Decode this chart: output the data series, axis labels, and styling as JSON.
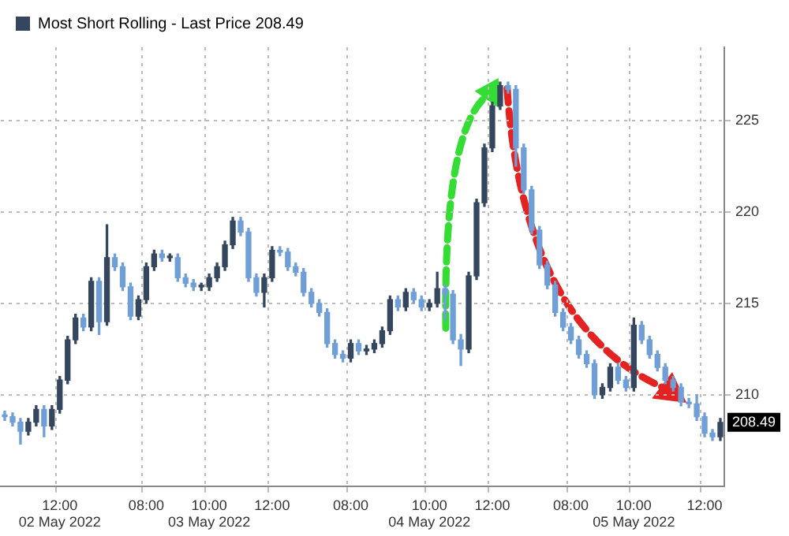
{
  "chart_data": {
    "type": "candlestick",
    "legend": "top left",
    "grid": true,
    "categories": [
      null,
      null,
      null,
      null,
      null,
      null,
      null,
      "12:00\n02 May 2022",
      null,
      null,
      null,
      null,
      null,
      null,
      null,
      null,
      null,
      null,
      "08:00",
      null,
      null,
      null,
      null,
      null,
      null,
      null,
      "10:00\n03 May 2022",
      null,
      null,
      null,
      null,
      null,
      null,
      null,
      "12:00",
      null,
      null,
      null,
      null,
      null,
      null,
      null,
      null,
      null,
      "08:00",
      null,
      null,
      null,
      null,
      null,
      null,
      null,
      null,
      null,
      "10:00\n04 May 2022",
      null,
      null,
      null,
      null,
      null,
      null,
      null,
      "12:00",
      null,
      null,
      null,
      null,
      null,
      null,
      null,
      null,
      null,
      "08:00",
      null,
      null,
      null,
      null,
      null,
      null,
      null,
      "10:00\n05 May 2022",
      null,
      null,
      null,
      null,
      null,
      null,
      null,
      null,
      "12:00",
      null,
      null
    ],
    "ylim": [
      205,
      229
    ],
    "yticks": [
      210,
      215,
      220,
      225
    ],
    "annotations": [
      {
        "text": "208.49",
        "y": 208.49
      }
    ],
    "series": [
      {
        "name": "Most Short Rolling - Last Price 208.49",
        "colors": [
          "#6f9fd6",
          "#6f9fd6",
          "#6f9fd6",
          "#34475e",
          "#34475e",
          "#6f9fd6",
          "#34475e",
          "#34475e",
          "#34475e",
          "#34475e",
          "#6f9fd6",
          "#34475e",
          "#6f9fd6",
          "#34475e",
          "#6f9fd6",
          "#6f9fd6",
          "#6f9fd6",
          "#34475e",
          "#34475e",
          "#34475e",
          "#6f9fd6",
          "#34475e",
          "#6f9fd6",
          "#6f9fd6",
          "#6f9fd6",
          "#34475e",
          "#34475e",
          "#34475e",
          "#34475e",
          "#34475e",
          "#6f9fd6",
          "#6f9fd6",
          "#6f9fd6",
          "#34475e",
          "#34475e",
          "#6f9fd6",
          "#6f9fd6",
          "#6f9fd6",
          "#6f9fd6",
          "#6f9fd6",
          "#6f9fd6",
          "#6f9fd6",
          "#6f9fd6",
          "#6f9fd6",
          "#34475e",
          "#6f9fd6",
          "#34475e",
          "#34475e",
          "#34475e",
          "#34475e",
          "#6f9fd6",
          "#34475e",
          "#6f9fd6",
          "#6f9fd6",
          "#34475e",
          "#34475e",
          "#6f9fd6",
          "#6f9fd6",
          "#6f9fd6",
          "#34475e",
          "#34475e",
          "#34475e",
          "#34475e",
          "#34475e",
          "#6f9fd6",
          "#6f9fd6",
          "#6f9fd6",
          "#6f9fd6",
          "#6f9fd6",
          "#6f9fd6",
          "#6f9fd6",
          "#6f9fd6",
          "#6f9fd6",
          "#6f9fd6",
          "#6f9fd6",
          "#6f9fd6",
          "#34475e",
          "#34475e",
          "#6f9fd6",
          "#6f9fd6",
          "#34475e",
          "#6f9fd6",
          "#6f9fd6",
          "#6f9fd6",
          "#6f9fd6",
          "#6f9fd6",
          "#6f9fd6",
          "#6f9fd6",
          "#6f9fd6",
          "#6f9fd6",
          "#6f9fd6",
          "#34475e"
        ],
        "ohlc": [
          [
            208.9,
            209.1,
            208.6,
            208.8
          ],
          [
            208.8,
            209.0,
            208.3,
            208.5
          ],
          [
            208.5,
            208.7,
            207.3,
            208.0
          ],
          [
            208.0,
            208.7,
            207.8,
            208.5
          ],
          [
            208.5,
            209.4,
            208.3,
            209.2
          ],
          [
            209.2,
            209.4,
            207.7,
            208.3
          ],
          [
            208.3,
            209.4,
            208.1,
            209.2
          ],
          [
            209.2,
            211.0,
            209.0,
            210.8
          ],
          [
            210.8,
            213.2,
            210.6,
            213.0
          ],
          [
            213.0,
            214.4,
            212.8,
            214.2
          ],
          [
            214.2,
            214.4,
            213.5,
            213.7
          ],
          [
            213.7,
            216.4,
            213.5,
            216.2
          ],
          [
            216.2,
            216.4,
            213.3,
            214.0
          ],
          [
            214.0,
            219.3,
            213.8,
            217.5
          ],
          [
            217.5,
            217.7,
            216.8,
            217.0
          ],
          [
            217.0,
            217.2,
            215.7,
            215.9
          ],
          [
            215.9,
            216.1,
            214.1,
            214.3
          ],
          [
            214.3,
            215.4,
            214.1,
            215.2
          ],
          [
            215.2,
            217.2,
            215.0,
            217.0
          ],
          [
            217.0,
            217.9,
            216.8,
            217.7
          ],
          [
            217.7,
            217.9,
            217.3,
            217.5
          ],
          [
            217.5,
            217.7,
            217.3,
            217.5
          ],
          [
            217.5,
            217.7,
            216.2,
            216.4
          ],
          [
            216.4,
            216.6,
            215.9,
            216.1
          ],
          [
            216.1,
            216.3,
            215.7,
            215.9
          ],
          [
            215.9,
            216.1,
            215.7,
            215.9
          ],
          [
            215.9,
            216.6,
            215.7,
            216.4
          ],
          [
            216.4,
            217.2,
            216.2,
            217.0
          ],
          [
            217.0,
            218.4,
            216.8,
            218.2
          ],
          [
            218.2,
            219.7,
            218.0,
            219.5
          ],
          [
            219.5,
            219.7,
            218.7,
            218.9
          ],
          [
            218.9,
            219.1,
            216.2,
            216.4
          ],
          [
            216.4,
            216.6,
            215.4,
            215.6
          ],
          [
            215.6,
            216.6,
            214.8,
            216.4
          ],
          [
            216.4,
            218.1,
            216.2,
            217.9
          ],
          [
            217.9,
            218.1,
            217.6,
            217.8
          ],
          [
            217.8,
            218.0,
            216.8,
            217.0
          ],
          [
            217.0,
            217.2,
            216.5,
            216.7
          ],
          [
            216.7,
            216.9,
            215.4,
            215.6
          ],
          [
            215.6,
            215.8,
            214.8,
            215.0
          ],
          [
            215.0,
            215.2,
            214.3,
            214.5
          ],
          [
            214.5,
            214.7,
            212.6,
            212.8
          ],
          [
            212.8,
            213.0,
            212.0,
            212.2
          ],
          [
            212.2,
            212.4,
            211.8,
            212.0
          ],
          [
            212.0,
            213.0,
            211.8,
            212.8
          ],
          [
            212.8,
            213.0,
            212.2,
            212.4
          ],
          [
            212.4,
            212.7,
            212.2,
            212.5
          ],
          [
            212.5,
            213.0,
            212.3,
            212.8
          ],
          [
            212.8,
            213.7,
            212.6,
            213.5
          ],
          [
            213.5,
            215.4,
            213.3,
            215.2
          ],
          [
            215.2,
            215.4,
            214.6,
            214.8
          ],
          [
            214.8,
            215.8,
            214.6,
            215.6
          ],
          [
            215.6,
            215.8,
            215.0,
            215.2
          ],
          [
            215.2,
            215.4,
            214.6,
            214.8
          ],
          [
            214.8,
            215.2,
            214.6,
            215.0
          ],
          [
            215.0,
            216.7,
            214.8,
            215.8
          ],
          [
            215.8,
            216.0,
            214.1,
            215.5
          ],
          [
            215.5,
            215.7,
            212.8,
            213.0
          ],
          [
            213.0,
            213.3,
            211.6,
            212.5
          ],
          [
            212.5,
            216.7,
            212.3,
            216.5
          ],
          [
            216.5,
            220.7,
            216.3,
            220.5
          ],
          [
            220.5,
            223.7,
            220.3,
            223.5
          ],
          [
            223.5,
            226.0,
            223.3,
            225.8
          ],
          [
            225.8,
            227.1,
            225.6,
            226.9
          ],
          [
            226.9,
            227.1,
            226.5,
            226.7
          ],
          [
            226.7,
            226.9,
            222.5,
            223.5
          ],
          [
            223.5,
            223.7,
            221.0,
            221.2
          ],
          [
            221.2,
            221.4,
            218.8,
            219.0
          ],
          [
            219.0,
            219.2,
            216.9,
            217.1
          ],
          [
            217.1,
            217.3,
            215.8,
            216.0
          ],
          [
            216.0,
            216.2,
            214.3,
            214.5
          ],
          [
            214.5,
            214.7,
            213.5,
            213.7
          ],
          [
            213.7,
            213.9,
            212.8,
            213.0
          ],
          [
            213.0,
            213.2,
            212.0,
            212.2
          ],
          [
            212.2,
            212.4,
            211.5,
            211.7
          ],
          [
            211.7,
            211.9,
            209.8,
            210.0
          ],
          [
            210.0,
            210.6,
            209.8,
            210.4
          ],
          [
            210.4,
            211.7,
            210.2,
            211.5
          ],
          [
            211.5,
            211.7,
            210.6,
            210.8
          ],
          [
            210.8,
            211.0,
            210.2,
            210.4
          ],
          [
            210.4,
            214.2,
            210.2,
            213.8
          ],
          [
            213.8,
            214.0,
            212.8,
            213.0
          ],
          [
            213.0,
            213.2,
            212.0,
            212.2
          ],
          [
            212.2,
            212.4,
            211.3,
            211.5
          ],
          [
            211.5,
            211.7,
            210.6,
            210.8
          ],
          [
            210.8,
            211.0,
            210.2,
            210.4
          ],
          [
            210.4,
            210.6,
            209.4,
            209.6
          ],
          [
            209.6,
            209.8,
            209.3,
            209.5
          ],
          [
            209.5,
            210.0,
            208.6,
            208.8
          ],
          [
            208.8,
            209.0,
            207.7,
            207.9
          ],
          [
            207.9,
            208.1,
            207.5,
            207.7
          ],
          [
            207.7,
            208.7,
            207.5,
            208.49
          ]
        ]
      }
    ]
  }
}
